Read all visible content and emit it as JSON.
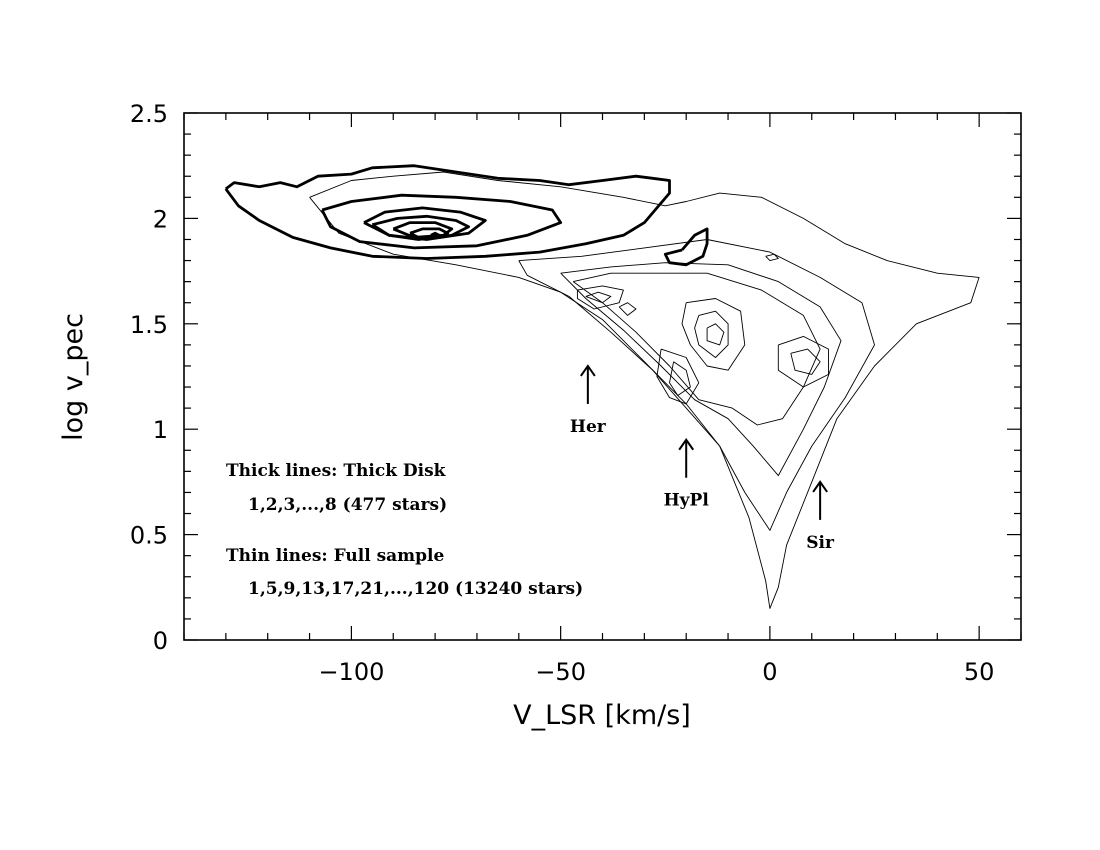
{
  "chart_data": {
    "type": "contour",
    "xlabel": "V_LSR [km/s]",
    "ylabel": "log v_pec",
    "xlim": [
      -140,
      60
    ],
    "ylim": [
      0,
      2.5
    ],
    "x_ticks": [
      -100,
      -50,
      0,
      50
    ],
    "x_tick_labels": [
      "−100",
      "−50",
      "0",
      "50"
    ],
    "y_ticks": [
      0,
      0.5,
      1,
      1.5,
      2,
      2.5
    ],
    "y_tick_labels": [
      "0",
      "0.5",
      "1",
      "1.5",
      "2",
      "2.5"
    ],
    "x_minor_step": 10,
    "y_minor_step": 0.1,
    "grid": false,
    "legend": [
      "Thick lines: Thick Disk",
      "1,2,3,...,8 (477 stars)",
      "Thin lines: Full sample",
      "1,5,9,13,17,21,...,120 (13240 stars)"
    ],
    "annotations": [
      {
        "label": "Her",
        "x": -43.5,
        "y": 1.3
      },
      {
        "label": "HyPl",
        "x": -20,
        "y": 0.95
      },
      {
        "label": "Sir",
        "x": 12,
        "y": 0.75
      }
    ],
    "series": [
      {
        "name": "Thick Disk",
        "levels": [
          1,
          2,
          3,
          4,
          5,
          6,
          7,
          8
        ],
        "contours": [
          [
            [
              -130,
              2.14
            ],
            [
              -128,
              2.17
            ],
            [
              -122,
              2.15
            ],
            [
              -117,
              2.17
            ],
            [
              -113,
              2.15
            ],
            [
              -108,
              2.2
            ],
            [
              -100,
              2.21
            ],
            [
              -95,
              2.24
            ],
            [
              -85,
              2.25
            ],
            [
              -75,
              2.22
            ],
            [
              -65,
              2.19
            ],
            [
              -55,
              2.18
            ],
            [
              -48,
              2.16
            ],
            [
              -40,
              2.18
            ],
            [
              -32,
              2.2
            ],
            [
              -28,
              2.19
            ],
            [
              -24,
              2.18
            ],
            [
              -24,
              2.12
            ],
            [
              -27,
              2.05
            ],
            [
              -30,
              1.98
            ],
            [
              -35,
              1.92
            ],
            [
              -44,
              1.88
            ],
            [
              -55,
              1.84
            ],
            [
              -68,
              1.82
            ],
            [
              -82,
              1.81
            ],
            [
              -95,
              1.82
            ],
            [
              -105,
              1.86
            ],
            [
              -114,
              1.91
            ],
            [
              -122,
              1.99
            ],
            [
              -127,
              2.06
            ],
            [
              -130,
              2.14
            ]
          ],
          [
            [
              -21,
              1.85
            ],
            [
              -18,
              1.92
            ],
            [
              -15,
              1.95
            ],
            [
              -15,
              1.88
            ],
            [
              -16,
              1.82
            ],
            [
              -20,
              1.78
            ],
            [
              -24,
              1.79
            ],
            [
              -25,
              1.83
            ],
            [
              -21,
              1.85
            ]
          ],
          [
            [
              -107,
              2.04
            ],
            [
              -100,
              2.08
            ],
            [
              -88,
              2.11
            ],
            [
              -75,
              2.1
            ],
            [
              -62,
              2.08
            ],
            [
              -52,
              2.04
            ],
            [
              -50,
              1.98
            ],
            [
              -58,
              1.92
            ],
            [
              -70,
              1.87
            ],
            [
              -85,
              1.86
            ],
            [
              -98,
              1.89
            ],
            [
              -105,
              1.96
            ],
            [
              -107,
              2.04
            ]
          ],
          [
            [
              -97,
              1.98
            ],
            [
              -92,
              2.03
            ],
            [
              -83,
              2.05
            ],
            [
              -74,
              2.03
            ],
            [
              -68,
              1.99
            ],
            [
              -72,
              1.93
            ],
            [
              -82,
              1.9
            ],
            [
              -91,
              1.92
            ],
            [
              -97,
              1.98
            ]
          ],
          [
            [
              -95,
              1.97
            ],
            [
              -89,
              2.0
            ],
            [
              -82,
              2.01
            ],
            [
              -75,
              1.99
            ],
            [
              -72,
              1.96
            ],
            [
              -76,
              1.92
            ],
            [
              -84,
              1.9
            ],
            [
              -91,
              1.92
            ],
            [
              -95,
              1.97
            ]
          ],
          [
            [
              -90,
              1.95
            ],
            [
              -86,
              1.98
            ],
            [
              -80,
              1.98
            ],
            [
              -76,
              1.95
            ],
            [
              -78,
              1.92
            ],
            [
              -85,
              1.91
            ],
            [
              -90,
              1.95
            ]
          ],
          [
            [
              -86,
              1.93
            ],
            [
              -83,
              1.95
            ],
            [
              -79,
              1.95
            ],
            [
              -77,
              1.93
            ],
            [
              -79,
              1.91
            ],
            [
              -84,
              1.91
            ],
            [
              -86,
              1.93
            ]
          ],
          [
            [
              -81,
              1.92
            ],
            [
              -80,
              1.93
            ],
            [
              -79,
              1.92
            ],
            [
              -80,
              1.91
            ],
            [
              -81,
              1.92
            ]
          ]
        ]
      },
      {
        "name": "Full sample",
        "levels": [
          1,
          5,
          9,
          13,
          17,
          21,
          120
        ],
        "contours": [
          [
            [
              -110,
              2.1
            ],
            [
              -100,
              2.18
            ],
            [
              -90,
              2.2
            ],
            [
              -78,
              2.22
            ],
            [
              -65,
              2.18
            ],
            [
              -50,
              2.15
            ],
            [
              -35,
              2.1
            ],
            [
              -25,
              2.06
            ],
            [
              -20,
              2.08
            ],
            [
              -12,
              2.12
            ],
            [
              -2,
              2.1
            ],
            [
              8,
              2.0
            ],
            [
              18,
              1.88
            ],
            [
              28,
              1.8
            ],
            [
              40,
              1.74
            ],
            [
              50,
              1.72
            ],
            [
              48,
              1.6
            ],
            [
              35,
              1.5
            ],
            [
              25,
              1.3
            ],
            [
              16,
              1.05
            ],
            [
              10,
              0.75
            ],
            [
              4,
              0.45
            ],
            [
              2,
              0.25
            ],
            [
              0,
              0.15
            ],
            [
              -1,
              0.28
            ],
            [
              -5,
              0.58
            ],
            [
              -12,
              0.92
            ],
            [
              -20,
              1.12
            ],
            [
              -30,
              1.32
            ],
            [
              -40,
              1.52
            ],
            [
              -50,
              1.65
            ],
            [
              -60,
              1.72
            ],
            [
              -75,
              1.78
            ],
            [
              -90,
              1.83
            ],
            [
              -103,
              1.93
            ],
            [
              -110,
              2.1
            ]
          ],
          [
            [
              -60,
              1.8
            ],
            [
              -45,
              1.82
            ],
            [
              -30,
              1.86
            ],
            [
              -15,
              1.9
            ],
            [
              0,
              1.84
            ],
            [
              12,
              1.72
            ],
            [
              22,
              1.6
            ],
            [
              25,
              1.4
            ],
            [
              18,
              1.15
            ],
            [
              10,
              0.92
            ],
            [
              4,
              0.7
            ],
            [
              0,
              0.52
            ],
            [
              -6,
              0.7
            ],
            [
              -12,
              0.92
            ],
            [
              -20,
              1.1
            ],
            [
              -28,
              1.28
            ],
            [
              -38,
              1.46
            ],
            [
              -48,
              1.63
            ],
            [
              -58,
              1.73
            ],
            [
              -60,
              1.8
            ]
          ],
          [
            [
              -50,
              1.74
            ],
            [
              -38,
              1.77
            ],
            [
              -25,
              1.79
            ],
            [
              -10,
              1.78
            ],
            [
              2,
              1.7
            ],
            [
              12,
              1.58
            ],
            [
              17,
              1.42
            ],
            [
              13,
              1.2
            ],
            [
              8,
              1.0
            ],
            [
              2,
              0.78
            ],
            [
              -4,
              0.92
            ],
            [
              -10,
              1.05
            ],
            [
              -18,
              1.14
            ],
            [
              -26,
              1.3
            ],
            [
              -35,
              1.47
            ],
            [
              -44,
              1.62
            ],
            [
              -50,
              1.74
            ]
          ],
          [
            [
              -47,
              1.7
            ],
            [
              -38,
              1.74
            ],
            [
              -28,
              1.74
            ],
            [
              -15,
              1.74
            ],
            [
              -2,
              1.66
            ],
            [
              8,
              1.54
            ],
            [
              12,
              1.38
            ],
            [
              8,
              1.2
            ],
            [
              3,
              1.05
            ],
            [
              -3,
              1.02
            ],
            [
              -9,
              1.1
            ],
            [
              -17,
              1.14
            ],
            [
              -24,
              1.3
            ],
            [
              -32,
              1.46
            ],
            [
              -40,
              1.6
            ],
            [
              -47,
              1.7
            ]
          ],
          [
            [
              -46,
              1.66
            ],
            [
              -40,
              1.68
            ],
            [
              -35,
              1.66
            ],
            [
              -36,
              1.6
            ],
            [
              -42,
              1.57
            ],
            [
              -46,
              1.62
            ],
            [
              -46,
              1.66
            ]
          ],
          [
            [
              -44,
              1.63
            ],
            [
              -41,
              1.65
            ],
            [
              -38,
              1.63
            ],
            [
              -40,
              1.6
            ],
            [
              -44,
              1.63
            ]
          ],
          [
            [
              -36,
              1.58
            ],
            [
              -34,
              1.6
            ],
            [
              -32,
              1.57
            ],
            [
              -34,
              1.54
            ],
            [
              -36,
              1.58
            ]
          ],
          [
            [
              -20,
              1.6
            ],
            [
              -13,
              1.62
            ],
            [
              -7,
              1.56
            ],
            [
              -6,
              1.4
            ],
            [
              -10,
              1.28
            ],
            [
              -15,
              1.3
            ],
            [
              -19,
              1.4
            ],
            [
              -21,
              1.5
            ],
            [
              -20,
              1.6
            ]
          ],
          [
            [
              -17,
              1.54
            ],
            [
              -13,
              1.56
            ],
            [
              -10,
              1.5
            ],
            [
              -10,
              1.4
            ],
            [
              -13,
              1.34
            ],
            [
              -17,
              1.4
            ],
            [
              -18,
              1.48
            ],
            [
              -17,
              1.54
            ]
          ],
          [
            [
              -15,
              1.48
            ],
            [
              -13,
              1.5
            ],
            [
              -11,
              1.46
            ],
            [
              -12,
              1.4
            ],
            [
              -15,
              1.42
            ],
            [
              -15,
              1.48
            ]
          ],
          [
            [
              -26,
              1.38
            ],
            [
              -20,
              1.34
            ],
            [
              -17,
              1.22
            ],
            [
              -20,
              1.12
            ],
            [
              -24,
              1.15
            ],
            [
              -27,
              1.25
            ],
            [
              -26,
              1.38
            ]
          ],
          [
            [
              -23,
              1.32
            ],
            [
              -20,
              1.28
            ],
            [
              -19,
              1.2
            ],
            [
              -22,
              1.16
            ],
            [
              -24,
              1.22
            ],
            [
              -23,
              1.32
            ]
          ],
          [
            [
              2,
              1.4
            ],
            [
              8,
              1.44
            ],
            [
              14,
              1.38
            ],
            [
              14,
              1.26
            ],
            [
              8,
              1.2
            ],
            [
              2,
              1.28
            ],
            [
              2,
              1.4
            ]
          ],
          [
            [
              5,
              1.36
            ],
            [
              9,
              1.38
            ],
            [
              12,
              1.32
            ],
            [
              10,
              1.26
            ],
            [
              6,
              1.28
            ],
            [
              5,
              1.36
            ]
          ],
          [
            [
              -1,
              1.82
            ],
            [
              1,
              1.83
            ],
            [
              2,
              1.81
            ],
            [
              0,
              1.8
            ],
            [
              -1,
              1.82
            ]
          ]
        ]
      }
    ]
  }
}
